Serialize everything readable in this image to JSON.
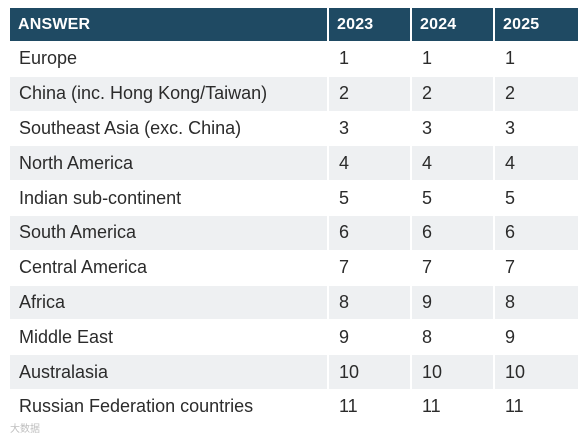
{
  "table": {
    "headers": [
      "ANSWER",
      "2023",
      "2024",
      "2025"
    ],
    "rows": [
      [
        "Europe",
        "1",
        "1",
        "1"
      ],
      [
        "China (inc. Hong Kong/Taiwan)",
        "2",
        "2",
        "2"
      ],
      [
        "Southeast Asia (exc. China)",
        "3",
        "3",
        "3"
      ],
      [
        "North America",
        "4",
        "4",
        "4"
      ],
      [
        "Indian sub-continent",
        "5",
        "5",
        "5"
      ],
      [
        "South America",
        "6",
        "6",
        "6"
      ],
      [
        "Central America",
        "7",
        "7",
        "7"
      ],
      [
        "Africa",
        "8",
        "9",
        "8"
      ],
      [
        "Middle East",
        "9",
        "8",
        "9"
      ],
      [
        "Australasia",
        "10",
        "10",
        "10"
      ],
      [
        "Russian Federation countries",
        "11",
        "11",
        "11"
      ]
    ]
  },
  "colors": {
    "header_bg": "#1f4a63",
    "header_text": "#ffffff",
    "stripe": "#eef0f2"
  },
  "watermark": "大数据"
}
